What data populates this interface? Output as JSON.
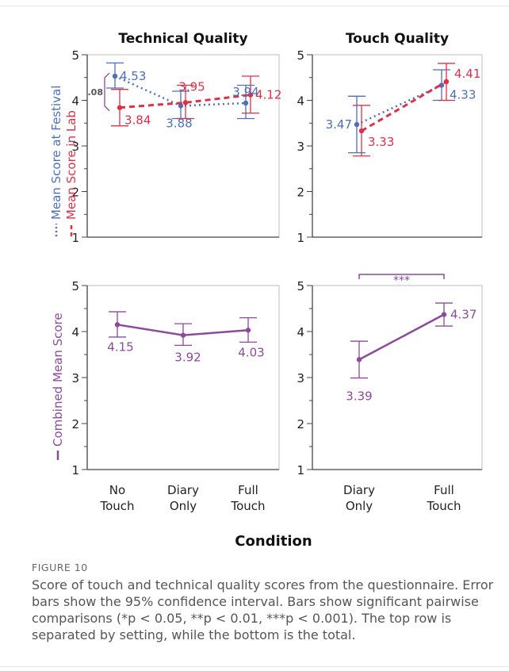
{
  "chart_data": {
    "type": "line",
    "x_title": "Condition",
    "panels": [
      {
        "id": "tech",
        "title": "Technical Quality",
        "categories": [
          "No Touch",
          "Diary Only",
          "Full Touch"
        ],
        "ylim": [
          1,
          5
        ],
        "yticks": [
          1,
          2,
          3,
          4,
          5
        ],
        "series": [
          {
            "name": "Mean Score at Festival",
            "color": "#4f6fb6",
            "style": "dotted",
            "values": [
              4.53,
              3.88,
              3.94
            ],
            "ci_low": [
              4.27,
              3.6,
              3.6
            ],
            "ci_high": [
              4.82,
              4.2,
              4.33
            ]
          },
          {
            "name": "Mean Score in Lab",
            "color": "#d9334a",
            "style": "dashed",
            "values": [
              3.84,
              3.95,
              4.12
            ],
            "ci_low": [
              3.44,
              3.6,
              3.72
            ],
            "ci_high": [
              4.24,
              4.33,
              4.53
            ]
          }
        ],
        "labels": [
          "4.53",
          "3.84",
          "3.88",
          "3.95",
          "3.94",
          "4.12"
        ],
        "bracket_label": ".08"
      },
      {
        "id": "touch",
        "title": "Touch Quality",
        "categories": [
          "Diary Only",
          "Full Touch"
        ],
        "ylim": [
          1,
          5
        ],
        "yticks": [
          1,
          2,
          3,
          4,
          5
        ],
        "series": [
          {
            "name": "Mean Score at Festival",
            "color": "#4f6fb6",
            "style": "dotted",
            "values": [
              3.47,
              4.33
            ],
            "ci_low": [
              2.85,
              4.0
            ],
            "ci_high": [
              4.09,
              4.67
            ]
          },
          {
            "name": "Mean Score in Lab",
            "color": "#d9334a",
            "style": "dashed",
            "values": [
              3.33,
              4.41
            ],
            "ci_low": [
              2.78,
              4.0
            ],
            "ci_high": [
              3.89,
              4.81
            ]
          }
        ],
        "labels": [
          "3.47",
          "3.33",
          "4.41",
          "4.33"
        ]
      },
      {
        "id": "combtech",
        "categories": [
          "No Touch",
          "Diary Only",
          "Full Touch"
        ],
        "ylim": [
          1,
          5
        ],
        "yticks": [
          1,
          2,
          3,
          4,
          5
        ],
        "series": [
          {
            "name": "Combined Mean Score",
            "color": "#8b4b9b",
            "style": "solid",
            "values": [
              4.15,
              3.92,
              4.03
            ],
            "ci_low": [
              3.88,
              3.7,
              3.77
            ],
            "ci_high": [
              4.43,
              4.17,
              4.3
            ]
          }
        ],
        "labels": [
          "4.15",
          "3.92",
          "4.03"
        ]
      },
      {
        "id": "combtouch",
        "categories": [
          "Diary Only",
          "Full Touch"
        ],
        "ylim": [
          1,
          5
        ],
        "yticks": [
          1,
          2,
          3,
          4,
          5
        ],
        "series": [
          {
            "name": "Combined Mean Score",
            "color": "#8b4b9b",
            "style": "solid",
            "values": [
              3.39,
              4.37
            ],
            "ci_low": [
              2.99,
              4.12
            ],
            "ci_high": [
              3.79,
              4.62
            ]
          }
        ],
        "labels": [
          "3.39",
          "4.37"
        ],
        "sig_label": "***"
      }
    ],
    "y_titles": {
      "festival": "Mean Score at Festival",
      "lab": "Mean Score in Lab",
      "combined": "Combined Mean Score"
    }
  },
  "caption": {
    "label": "FIGURE 10",
    "text": "Score of touch and technical quality scores from the questionnaire. Error bars show the 95% confidence interval. Bars show significant pairwise comparisons (*p < 0.05, **p < 0.01, ***p < 0.001). The top row is separated by setting, while the bottom is the total."
  },
  "colors": {
    "festival": "#4f6fb6",
    "lab": "#d9334a",
    "combined": "#8b4b9b",
    "axis": "#999999"
  }
}
